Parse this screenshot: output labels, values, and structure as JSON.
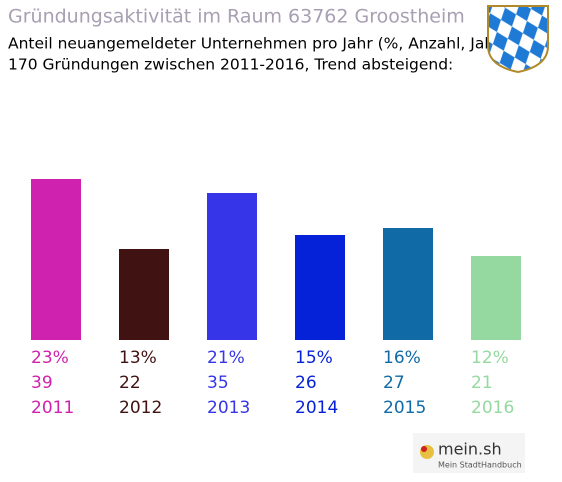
{
  "chart_data": {
    "type": "bar",
    "title": "Gründungsaktivität im Raum 63762 Groostheim",
    "subtitle": [
      "Anteil neuangemeldeter Unternehmen pro Jahr (%, Anzahl, Jahr)",
      "170 Gründungen zwischen 2011-2016, Trend absteigend:"
    ],
    "categories": [
      "2011",
      "2012",
      "2013",
      "2014",
      "2015",
      "2016"
    ],
    "values": [
      23,
      13,
      21,
      15,
      16,
      12
    ],
    "value_labels": [
      "23%",
      "13%",
      "21%",
      "15%",
      "16%",
      "12%"
    ],
    "counts": [
      39,
      22,
      35,
      26,
      27,
      21
    ],
    "colors": [
      "#cf22ae",
      "#401212",
      "#3636e8",
      "#0522d8",
      "#0f6aa6",
      "#96d9a0"
    ],
    "brand": {
      "name": "mein.sh",
      "tagline": "Mein StadtHandbuch"
    }
  }
}
